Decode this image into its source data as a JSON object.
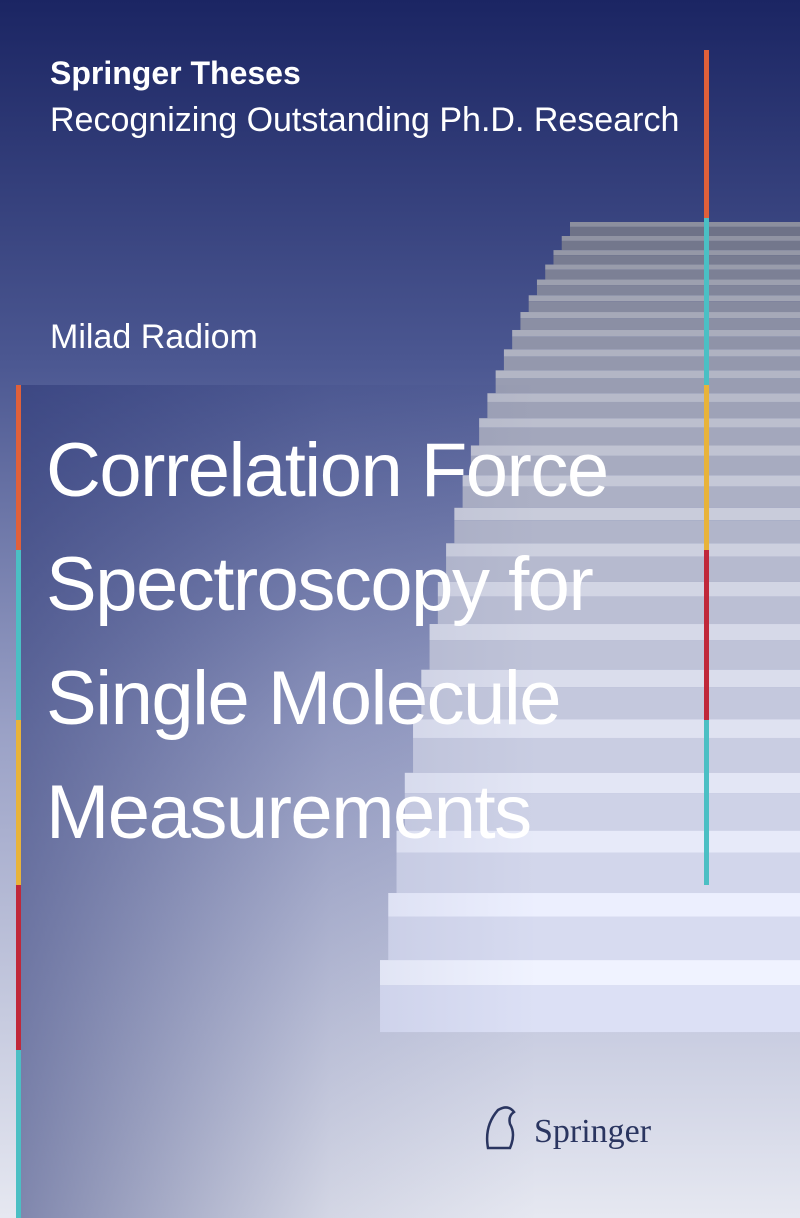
{
  "series": {
    "name": "Springer Theses",
    "subtitle": "Recognizing Outstanding Ph.D. Research"
  },
  "author": "Milad Radiom",
  "title_lines": [
    "Correlation Force",
    "Spectroscopy for",
    "Single Molecule",
    "Measurements"
  ],
  "publisher": "Springer"
}
